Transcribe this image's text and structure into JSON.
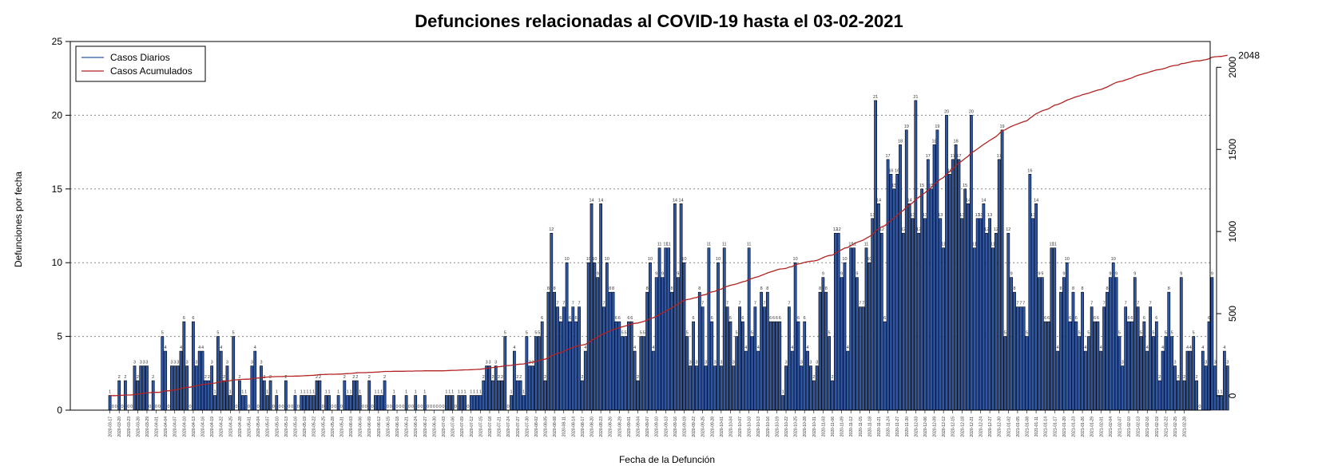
{
  "chart_data": {
    "type": "bar",
    "title": "Defunciones relacionadas al COVID-19 hasta el 03-02-2021",
    "xlabel": "Fecha de la Defunción",
    "ylabel": "Defunciones por fecha",
    "ylim": [
      0,
      25
    ],
    "y_ticks": [
      0,
      5,
      10,
      15,
      20,
      25
    ],
    "y2lim": [
      0,
      2050
    ],
    "y2_ticks": [
      0,
      500,
      1000,
      1500,
      2000
    ],
    "grid": "horizontal dotted",
    "legend_position": "top-left",
    "start_date": "2020-03-17",
    "end_date": "2021-02-03",
    "date_labels": [
      "2020-03-17",
      "2020-03-20",
      "2020-03-23",
      "2020-03-26",
      "2020-03-29",
      "2020-04-01",
      "2020-04-04",
      "2020-04-07",
      "2020-04-10",
      "2020-04-13",
      "2020-04-16",
      "2020-04-19",
      "2020-04-22",
      "2020-04-25",
      "2020-04-28",
      "2020-05-01",
      "2020-05-04",
      "2020-05-07",
      "2020-05-10",
      "2020-05-13",
      "2020-05-16",
      "2020-05-19",
      "2020-05-22",
      "2020-05-25",
      "2020-05-28",
      "2020-05-31",
      "2020-06-03",
      "2020-06-06",
      "2020-06-09",
      "2020-06-12",
      "2020-06-15",
      "2020-06-18",
      "2020-06-21",
      "2020-06-24",
      "2020-06-27",
      "2020-06-30",
      "2020-07-03",
      "2020-07-06",
      "2020-07-09",
      "2020-07-12",
      "2020-07-15",
      "2020-07-18",
      "2020-07-21",
      "2020-07-24",
      "2020-07-27",
      "2020-07-30",
      "2020-08-02",
      "2020-08-05",
      "2020-08-08",
      "2020-08-11",
      "2020-08-14",
      "2020-08-17",
      "2020-08-20",
      "2020-08-23",
      "2020-08-26",
      "2020-08-29",
      "2020-09-01",
      "2020-09-04",
      "2020-09-07",
      "2020-09-10",
      "2020-09-13",
      "2020-09-16",
      "2020-09-19",
      "2020-09-22",
      "2020-09-25",
      "2020-09-28",
      "2020-10-01",
      "2020-10-04",
      "2020-10-07",
      "2020-10-10",
      "2020-10-13",
      "2020-10-16",
      "2020-10-19",
      "2020-10-22",
      "2020-10-25",
      "2020-10-28",
      "2020-10-31",
      "2020-11-03",
      "2020-11-06",
      "2020-11-09",
      "2020-11-12",
      "2020-11-15",
      "2020-11-18",
      "2020-11-21",
      "2020-11-24",
      "2020-11-27",
      "2020-11-30",
      "2020-12-03",
      "2020-12-06",
      "2020-12-09",
      "2020-12-12",
      "2020-12-15",
      "2020-12-18",
      "2020-12-21",
      "2020-12-24",
      "2020-12-27",
      "2020-12-30",
      "2021-01-02",
      "2021-01-05",
      "2021-01-08",
      "2021-01-11",
      "2021-01-14",
      "2021-01-17",
      "2021-01-20",
      "2021-01-23",
      "2021-01-26",
      "2021-01-29",
      "2021-02-01",
      "2021-02-04",
      "2021-02-07",
      "2021-02-10",
      "2021-02-13",
      "2021-02-16",
      "2021-02-19",
      "2021-02-22",
      "2021-02-25",
      "2021-02-28"
    ],
    "series": [
      {
        "name": "Casos Diarios",
        "color": "#2e56a6",
        "axis": "left",
        "values": [
          1,
          0,
          0,
          2,
          0,
          2,
          0,
          0,
          3,
          2,
          3,
          3,
          3,
          0,
          2,
          0,
          0,
          5,
          4,
          0,
          3,
          3,
          3,
          4,
          6,
          3,
          0,
          6,
          3,
          4,
          4,
          2,
          2,
          3,
          1,
          5,
          4,
          2,
          3,
          1,
          5,
          0,
          2,
          1,
          1,
          0,
          3,
          4,
          0,
          3,
          2,
          1,
          2,
          0,
          1,
          0,
          0,
          2,
          0,
          0,
          1,
          0,
          1,
          1,
          1,
          1,
          1,
          2,
          2,
          0,
          1,
          1,
          0,
          0,
          1,
          0,
          2,
          1,
          1,
          2,
          2,
          1,
          0,
          0,
          2,
          0,
          1,
          1,
          1,
          2,
          0,
          0,
          1,
          0,
          0,
          0,
          1,
          0,
          0,
          1,
          0,
          0,
          1,
          0,
          0,
          0,
          0,
          0,
          0,
          1,
          1,
          1,
          0,
          1,
          1,
          1,
          0,
          1,
          1,
          1,
          1,
          2,
          3,
          3,
          2,
          3,
          2,
          2,
          5,
          0,
          1,
          4,
          2,
          2,
          1,
          5,
          3,
          3,
          5,
          5,
          6,
          2,
          8,
          12,
          8,
          7,
          6,
          7,
          10,
          6,
          7,
          6,
          7,
          2,
          4,
          10,
          14,
          10,
          9,
          14,
          7,
          10,
          8,
          8,
          6,
          6,
          5,
          5,
          6,
          6,
          4,
          2,
          5,
          5,
          8,
          10,
          4,
          9,
          11,
          9,
          11,
          11,
          8,
          14,
          9,
          14,
          10,
          5,
          3,
          6,
          3,
          8,
          7,
          3,
          11,
          6,
          3,
          10,
          3,
          11,
          7,
          6,
          3,
          5,
          7,
          6,
          4,
          11,
          5,
          7,
          4,
          8,
          7,
          8,
          6,
          6,
          6,
          6,
          1,
          3,
          7,
          4,
          10,
          6,
          3,
          6,
          4,
          3,
          2,
          3,
          8,
          9,
          8,
          5,
          2,
          12,
          12,
          9,
          10,
          4,
          11,
          11,
          9,
          7,
          7,
          11,
          10,
          13,
          21,
          14,
          12,
          6,
          17,
          16,
          15,
          16,
          18,
          12,
          19,
          14,
          13,
          21,
          12,
          15,
          13,
          17,
          15,
          18,
          19,
          13,
          11,
          20,
          16,
          17,
          18,
          17,
          13,
          15,
          14,
          20,
          11,
          13,
          13,
          14,
          12,
          13,
          11,
          12,
          17,
          19,
          5,
          12,
          9,
          8,
          7,
          7,
          7,
          5,
          16,
          13,
          14,
          9,
          9,
          6,
          6,
          11,
          11,
          4,
          8,
          9,
          10,
          6,
          8,
          6,
          5,
          8,
          4,
          5,
          7,
          6,
          6,
          4,
          7,
          8,
          9,
          10,
          9,
          5,
          3,
          7,
          6,
          6,
          9,
          7,
          5,
          6,
          4,
          7,
          5,
          6,
          2,
          4,
          5,
          8,
          5,
          3,
          2,
          9,
          2,
          4,
          4,
          5,
          2,
          0,
          4,
          3,
          6,
          9,
          3,
          1,
          1,
          4,
          3
        ]
      },
      {
        "name": "Casos Acumulados",
        "color": "#b22222",
        "axis": "right",
        "final_value_label": "2048"
      }
    ]
  }
}
